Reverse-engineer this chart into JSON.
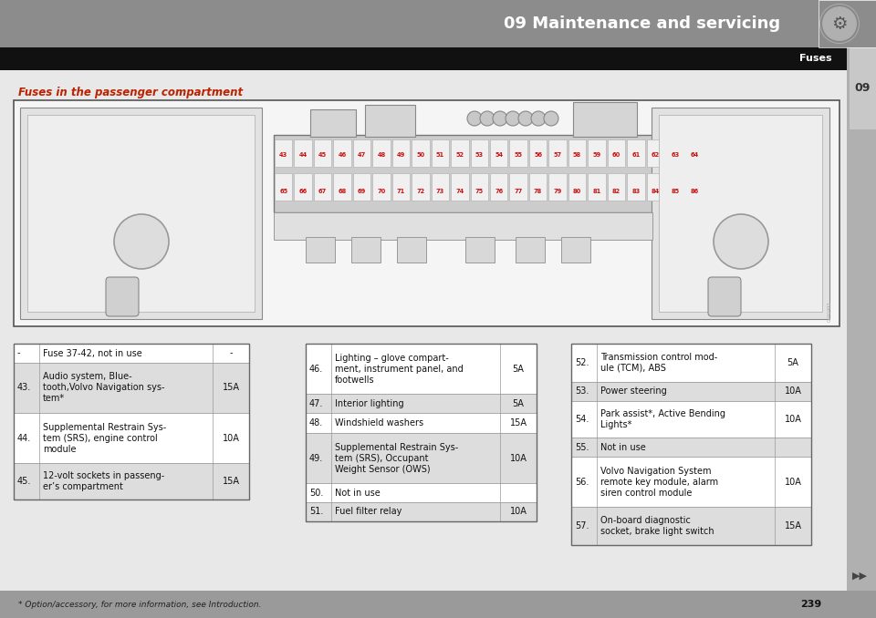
{
  "header_bg": "#8a8a8a",
  "header_text": "09 Maintenance and servicing",
  "header_text_color": "#ffffff",
  "fuses_label": "Fuses",
  "fuses_label_bg": "#111111",
  "fuses_label_color": "#ffffff",
  "section_title": "Fuses in the passenger compartment",
  "section_title_color": "#bb2200",
  "side_tab_bg": "#c0c0c0",
  "side_tab_text": "09",
  "footer_text": "* Option/accessory, for more information, see Introduction.",
  "page_number": "239",
  "table_border": "#999999",
  "table_alt_row_bg": "#dddddd",
  "table_white_bg": "#ffffff",
  "col1_left": [
    [
      "-",
      "Fuse 37-42, not in use",
      "-"
    ],
    [
      "43.",
      "Audio system, Blue-\ntooth,Volvo Navigation sys-\ntem*",
      "15A"
    ],
    [
      "44.",
      "Supplemental Restrain Sys-\ntem (SRS), engine control\nmodule",
      "10A"
    ],
    [
      "45.",
      "12-volt sockets in passeng-\ner’s compartment",
      "15A"
    ]
  ],
  "col2_mid": [
    [
      "46.",
      "Lighting – glove compart-\nment, instrument panel, and\nfootwells",
      "5A"
    ],
    [
      "47.",
      "Interior lighting",
      "5A"
    ],
    [
      "48.",
      "Windshield washers",
      "15A"
    ],
    [
      "49.",
      "Supplemental Restrain Sys-\ntem (SRS), Occupant\nWeight Sensor (OWS)",
      "10A"
    ],
    [
      "50.",
      "Not in use",
      ""
    ],
    [
      "51.",
      "Fuel filter relay",
      "10A"
    ]
  ],
  "col3_right": [
    [
      "52.",
      "Transmission control mod-\nule (TCM), ABS",
      "5A"
    ],
    [
      "53.",
      "Power steering",
      "10A"
    ],
    [
      "54.",
      "Park assist*, Active Bending\nLights*",
      "10A"
    ],
    [
      "55.",
      "Not in use",
      ""
    ],
    [
      "56.",
      "Volvo Navigation System\nremote key module, alarm\nsiren control module",
      "10A"
    ],
    [
      "57.",
      "On-board diagnostic\nsocket, brake light switch",
      "15A"
    ]
  ],
  "fuse_row1": [
    "43",
    "44",
    "45",
    "46",
    "47",
    "48",
    "49",
    "50",
    "51",
    "52",
    "53",
    "54",
    "55",
    "56",
    "57",
    "58",
    "59",
    "60",
    "61",
    "62",
    "63",
    "64"
  ],
  "fuse_row2": [
    "65",
    "66",
    "67",
    "68",
    "69",
    "70",
    "71",
    "72",
    "73",
    "74",
    "75",
    "76",
    "77",
    "78",
    "79",
    "80",
    "81",
    "82",
    "83",
    "84",
    "85",
    "86"
  ]
}
